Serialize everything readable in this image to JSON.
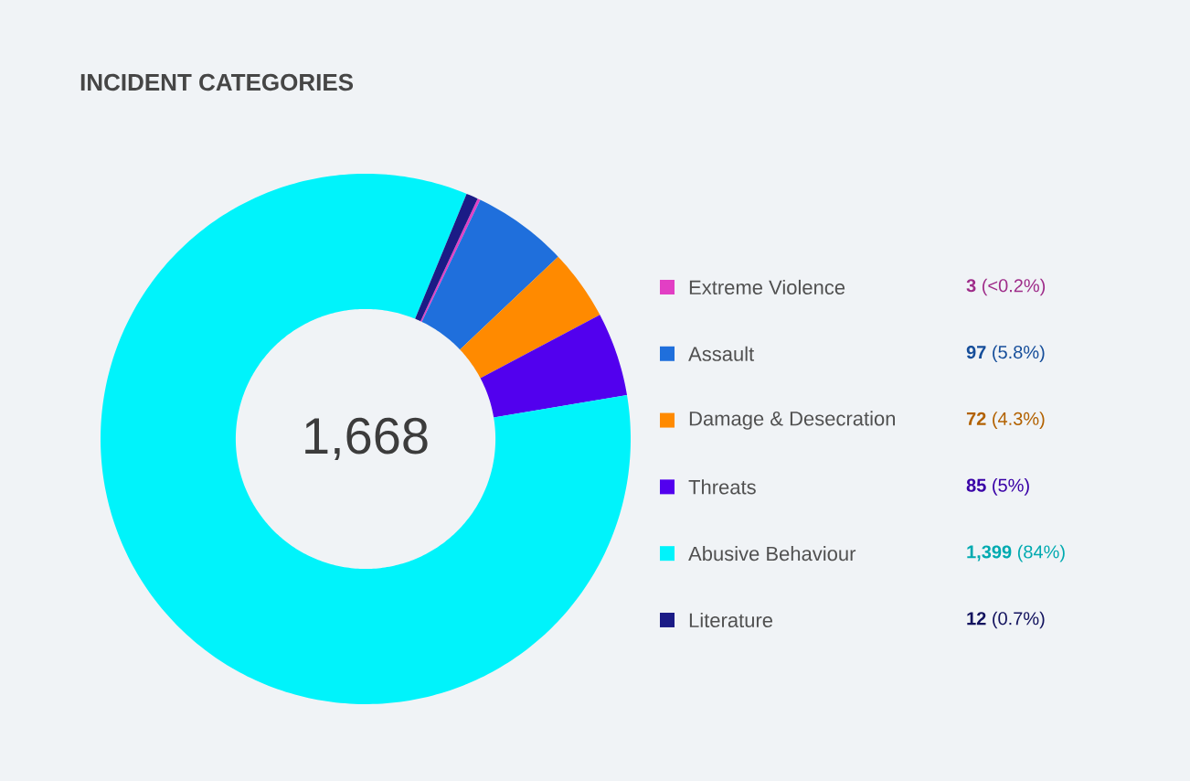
{
  "chart_data": {
    "type": "donut",
    "title": "INCIDENT CATEGORIES",
    "categories": [
      "Extreme Violence",
      "Assault",
      "Damage & Desecration",
      "Threats",
      "Abusive Behaviour",
      "Literature"
    ],
    "values": [
      3,
      97,
      72,
      85,
      1399,
      12
    ],
    "colors": [
      "#e23fc4",
      "#1f6fdc",
      "#ff8a00",
      "#5200ee",
      "#00f3fb",
      "#1b1b86"
    ],
    "value_labels": [
      "**3** (<0.2%)",
      "**97** (5.8%)",
      "**72** (4.3%)",
      "**85** (5%)",
      "**1,399** (84%)",
      "**12** (0.7%)"
    ],
    "annotations": [
      "1,668"
    ],
    "legend": "right"
  }
}
